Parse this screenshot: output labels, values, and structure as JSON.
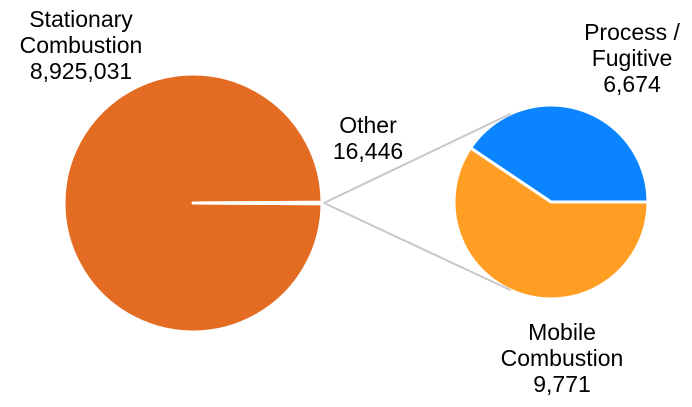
{
  "chart_data": {
    "type": "pie",
    "subtype": "pie-of-pie",
    "main_pie": {
      "slices": [
        {
          "label": "Stationary Combustion",
          "value": 8925031,
          "value_label": "8,925,031",
          "color": "#E46B22"
        },
        {
          "label": "Other",
          "value": 16446,
          "value_label": "16,446",
          "color": "#E46B22"
        }
      ]
    },
    "secondary_pie": {
      "slices": [
        {
          "label": "Process / Fugitive",
          "value": 6674,
          "value_label": "6,674",
          "color": "#0A84FF"
        },
        {
          "label": "Mobile Combustion",
          "value": 9771,
          "value_label": "9,771",
          "color": "#FF9E22"
        }
      ]
    },
    "labels": {
      "stationary": {
        "line1": "Stationary",
        "line2": "Combustion",
        "value": "8,925,031"
      },
      "other": {
        "line1": "Other",
        "value": "16,446"
      },
      "process": {
        "line1": "Process /",
        "line2": "Fugitive",
        "value": "6,674"
      },
      "mobile": {
        "line1": "Mobile",
        "line2": "Combustion",
        "value": "9,771"
      }
    },
    "connector_color": "#C8C8C8",
    "legend": "none"
  }
}
